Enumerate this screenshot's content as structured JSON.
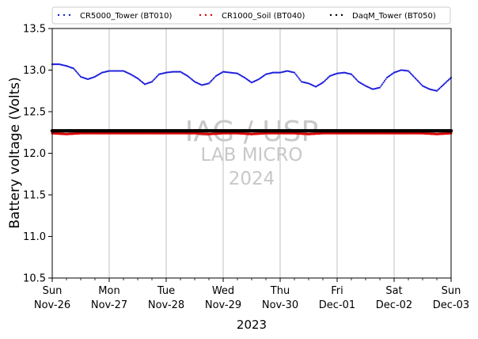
{
  "chart_data": {
    "type": "scatter",
    "title": "",
    "xlabel": "2023",
    "ylabel": "Battery voltage (Volts)",
    "xlim": [
      "2023-11-26",
      "2023-12-03"
    ],
    "ylim": [
      10.5,
      13.5
    ],
    "yticks": [
      "10.5",
      "11.0",
      "11.5",
      "12.0",
      "12.5",
      "13.0",
      "13.5"
    ],
    "xticks": [
      {
        "day": "Sun",
        "date": "Nov-26"
      },
      {
        "day": "Mon",
        "date": "Nov-27"
      },
      {
        "day": "Tue",
        "date": "Nov-28"
      },
      {
        "day": "Wed",
        "date": "Nov-29"
      },
      {
        "day": "Thu",
        "date": "Nov-30"
      },
      {
        "day": "Fri",
        "date": "Dec-01"
      },
      {
        "day": "Sat",
        "date": "Dec-02"
      },
      {
        "day": "Sun",
        "date": "Dec-03"
      }
    ],
    "grid": "vertical",
    "legend_position": "top",
    "watermark": {
      "line1": "IAG / USP",
      "line2": "LAB MICRO",
      "line3": "2024"
    },
    "series": [
      {
        "name": "CR5000_Tower (BT010)",
        "color": "#1f1fdc",
        "x": [
          "2023-11-26 00:00",
          "2023-11-26 03:00",
          "2023-11-26 06:00",
          "2023-11-26 09:00",
          "2023-11-26 12:00",
          "2023-11-26 15:00",
          "2023-11-26 18:00",
          "2023-11-26 21:00",
          "2023-11-27 00:00",
          "2023-11-27 03:00",
          "2023-11-27 06:00",
          "2023-11-27 09:00",
          "2023-11-27 12:00",
          "2023-11-27 15:00",
          "2023-11-27 18:00",
          "2023-11-27 21:00",
          "2023-11-28 00:00",
          "2023-11-28 03:00",
          "2023-11-28 06:00",
          "2023-11-28 09:00",
          "2023-11-28 12:00",
          "2023-11-28 15:00",
          "2023-11-28 18:00",
          "2023-11-28 21:00",
          "2023-11-29 00:00",
          "2023-11-29 03:00",
          "2023-11-29 06:00",
          "2023-11-29 09:00",
          "2023-11-29 12:00",
          "2023-11-29 15:00",
          "2023-11-29 18:00",
          "2023-11-29 21:00",
          "2023-11-30 00:00",
          "2023-11-30 03:00",
          "2023-11-30 06:00",
          "2023-11-30 09:00",
          "2023-11-30 12:00",
          "2023-11-30 15:00",
          "2023-11-30 18:00",
          "2023-11-30 21:00",
          "2023-12-01 00:00",
          "2023-12-01 03:00",
          "2023-12-01 06:00",
          "2023-12-01 09:00",
          "2023-12-01 12:00",
          "2023-12-01 15:00",
          "2023-12-01 18:00",
          "2023-12-01 21:00",
          "2023-12-02 00:00",
          "2023-12-02 03:00",
          "2023-12-02 06:00",
          "2023-12-02 09:00",
          "2023-12-02 12:00",
          "2023-12-02 15:00",
          "2023-12-02 18:00",
          "2023-12-02 21:00",
          "2023-12-03 00:00"
        ],
        "y": [
          13.07,
          13.07,
          13.05,
          13.02,
          12.92,
          12.89,
          12.92,
          12.97,
          12.99,
          12.99,
          12.99,
          12.95,
          12.9,
          12.83,
          12.86,
          12.95,
          12.97,
          12.98,
          12.98,
          12.93,
          12.86,
          12.82,
          12.84,
          12.93,
          12.98,
          12.97,
          12.96,
          12.91,
          12.85,
          12.89,
          12.95,
          12.97,
          12.97,
          12.99,
          12.97,
          12.86,
          12.84,
          12.8,
          12.85,
          12.93,
          12.96,
          12.97,
          12.95,
          12.86,
          12.81,
          12.77,
          12.79,
          12.91,
          12.97,
          13.0,
          12.99,
          12.9,
          12.81,
          12.77,
          12.75,
          12.83,
          12.91
        ]
      },
      {
        "name": "CR1000_Soil (BT040)",
        "color": "#e00000",
        "x": [
          "2023-11-26 00:00",
          "2023-11-26 06:00",
          "2023-11-26 12:00",
          "2023-11-26 18:00",
          "2023-11-27 00:00",
          "2023-11-27 06:00",
          "2023-11-27 12:00",
          "2023-11-27 18:00",
          "2023-11-28 00:00",
          "2023-11-28 06:00",
          "2023-11-28 12:00",
          "2023-11-28 18:00",
          "2023-11-29 00:00",
          "2023-11-29 06:00",
          "2023-11-29 12:00",
          "2023-11-29 18:00",
          "2023-11-30 00:00",
          "2023-11-30 06:00",
          "2023-11-30 12:00",
          "2023-11-30 18:00",
          "2023-12-01 00:00",
          "2023-12-01 06:00",
          "2023-12-01 12:00",
          "2023-12-01 18:00",
          "2023-12-02 00:00",
          "2023-12-02 06:00",
          "2023-12-02 12:00",
          "2023-12-02 18:00",
          "2023-12-03 00:00"
        ],
        "y": [
          12.24,
          12.23,
          12.24,
          12.24,
          12.24,
          12.24,
          12.24,
          12.24,
          12.24,
          12.24,
          12.24,
          12.23,
          12.24,
          12.24,
          12.23,
          12.24,
          12.24,
          12.24,
          12.23,
          12.24,
          12.24,
          12.24,
          12.24,
          12.24,
          12.24,
          12.24,
          12.24,
          12.23,
          12.24
        ]
      },
      {
        "name": "DaqM_Tower (BT050)",
        "color": "#000000",
        "x": [
          "2023-11-26 00:00",
          "2023-11-26 12:00",
          "2023-11-27 00:00",
          "2023-11-27 12:00",
          "2023-11-28 00:00",
          "2023-11-28 12:00",
          "2023-11-29 00:00",
          "2023-11-29 12:00",
          "2023-11-30 00:00",
          "2023-11-30 12:00",
          "2023-12-01 00:00",
          "2023-12-01 12:00",
          "2023-12-02 00:00",
          "2023-12-02 12:00",
          "2023-12-03 00:00"
        ],
        "y": [
          12.27,
          12.27,
          12.27,
          12.27,
          12.27,
          12.27,
          12.27,
          12.27,
          12.27,
          12.27,
          12.27,
          12.27,
          12.27,
          12.27,
          12.27
        ]
      }
    ]
  }
}
